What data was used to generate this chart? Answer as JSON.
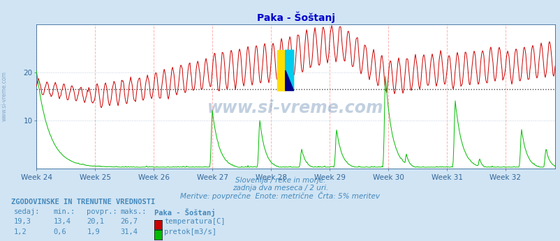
{
  "title": "Paka - Šoštanj",
  "title_color": "#0000cc",
  "bg_color": "#d0e4f4",
  "plot_bg_color": "#ffffff",
  "grid_color": "#c0d0e0",
  "grid_vline_color": "#ffaaaa",
  "x_labels": [
    "Week 24",
    "Week 25",
    "Week 26",
    "Week 27",
    "Week 28",
    "Week 29",
    "Week 30",
    "Week 31",
    "Week 32"
  ],
  "y_ticks": [
    10,
    20
  ],
  "y_max": 30,
  "subtitle1": "Slovenija / reke in morje.",
  "subtitle2": "zadnja dva meseca / 2 uri.",
  "subtitle3": "Meritve: povprečne  Enote: metrične  Črta: 5% meritev",
  "subtitle_color": "#4488bb",
  "temp_color": "#cc0000",
  "flow_color": "#00bb00",
  "avg_line_color": "#444444",
  "avg_line_value": 16.5,
  "watermark_text": "www.si-vreme.com",
  "legend_title": "ZGODOVINSKE IN TRENUTNE VREDNOSTI",
  "legend_header": [
    "sedaj:",
    "min.:",
    "povpr.:",
    "maks.:",
    "Paka - Šoštanj"
  ],
  "legend_temp": [
    "19,3",
    "13,4",
    "20,1",
    "26,7",
    "temperatura[C]"
  ],
  "legend_flow": [
    "1,2",
    "0,6",
    "1,9",
    "31,4",
    "pretok[m3/s]"
  ],
  "legend_color": "#4488bb",
  "n_points": 744,
  "week_positions": [
    0,
    84,
    168,
    252,
    336,
    420,
    504,
    588,
    672
  ]
}
